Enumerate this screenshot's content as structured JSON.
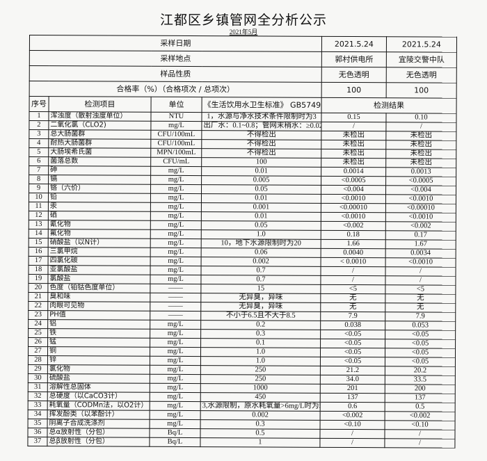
{
  "title": "江都区乡镇管网全分析公示",
  "subtitle": "2021年5月",
  "header_rows": [
    {
      "label": "采样日期",
      "values": [
        "2021.5.24",
        "2021.5.24"
      ]
    },
    {
      "label": "采样地点",
      "values": [
        "郭村供电所",
        "宜陵交警中队"
      ]
    },
    {
      "label": "样品性质",
      "values": [
        "无色透明",
        "无色透明"
      ]
    },
    {
      "label": "合格率（%）（合格项次 / 总项次）",
      "values": [
        "100",
        "100"
      ]
    }
  ],
  "columns": {
    "seq": "序号",
    "item": "检测项目",
    "unit": "单位",
    "standard": "《生活饮用水卫生标准》 GB5749",
    "result": "检测结果"
  },
  "rows": [
    {
      "seq": "1",
      "item": "浑浊度（散射浊度单位）",
      "unit": "NTU",
      "standard": "1，水源与净水技术条件限制时为3",
      "r1": "0.15",
      "r2": "0.10"
    },
    {
      "seq": "2",
      "item": "二氧化氯（CLO2)",
      "unit": "mg/L",
      "standard": "出厂水：0.1~0.8；管网末稍水：≥0.02",
      "r1": "/",
      "r2": "/"
    },
    {
      "seq": "3",
      "item": "总大肠菌群",
      "unit": "CFU/100mL",
      "standard": "不得检出",
      "r1": "未检出",
      "r2": "未检出"
    },
    {
      "seq": "4",
      "item": "耐热大肠菌群",
      "unit": "CFU/100mL",
      "standard": "不得检出",
      "r1": "未检出",
      "r2": "未检出"
    },
    {
      "seq": "5",
      "item": "大肠埃希氏菌",
      "unit": "MPN/100mL",
      "standard": "不得检出",
      "r1": "未检出",
      "r2": "未检出"
    },
    {
      "seq": "6",
      "item": "菌落总数",
      "unit": "CFU/mL",
      "standard": "100",
      "r1": "未检出",
      "r2": "未检出"
    },
    {
      "seq": "7",
      "item": "砷",
      "unit": "mg/L",
      "standard": "0.01",
      "r1": "0.0014",
      "r2": "0.0013"
    },
    {
      "seq": "8",
      "item": "镉",
      "unit": "mg/L",
      "standard": "0.005",
      "r1": "<0.0005",
      "r2": "<0.0005"
    },
    {
      "seq": "9",
      "item": "铬（六价）",
      "unit": "mg/L",
      "standard": "0.05",
      "r1": "<0.004",
      "r2": "<0.004"
    },
    {
      "seq": "10",
      "item": "铅",
      "unit": "mg/L",
      "standard": "0.01",
      "r1": "<0.0010",
      "r2": "<0.0010"
    },
    {
      "seq": "11",
      "item": "汞",
      "unit": "mg/L",
      "standard": "0.001",
      "r1": "<0.00010",
      "r2": "<0.00010"
    },
    {
      "seq": "12",
      "item": "硒",
      "unit": "mg/L",
      "standard": "0.01",
      "r1": "<0.0010",
      "r2": "<0.0010"
    },
    {
      "seq": "13",
      "item": "氰化物",
      "unit": "mg/L",
      "standard": "0.05",
      "r1": "<0.002",
      "r2": "<0.002"
    },
    {
      "seq": "14",
      "item": "氟化物",
      "unit": "mg/L",
      "standard": "1.0",
      "r1": "0.18",
      "r2": "0.17"
    },
    {
      "seq": "15",
      "item": "硝酸盐（以N计）",
      "unit": "mg/L",
      "standard": "10，地下水源限制时为20",
      "r1": "1.66",
      "r2": "1.67"
    },
    {
      "seq": "16",
      "item": "三氯甲烷",
      "unit": "mg/L",
      "standard": "0.06",
      "r1": "0.0040",
      "r2": "0.0034"
    },
    {
      "seq": "17",
      "item": "四氯化碳",
      "unit": "mg/L",
      "standard": "0.002",
      "r1": "< 0.0010",
      "r2": "<0.0010"
    },
    {
      "seq": "18",
      "item": "亚氯酸盐",
      "unit": "mg/L",
      "standard": "0.7",
      "r1": "/",
      "r2": "/"
    },
    {
      "seq": "19",
      "item": "氯酸盐",
      "unit": "mg/L",
      "standard": "0.7",
      "r1": "/",
      "r2": "/"
    },
    {
      "seq": "20",
      "item": "色度（铂钴色度单位）",
      "unit": "——",
      "standard": "15",
      "r1": "<5",
      "r2": "<5"
    },
    {
      "seq": "21",
      "item": "臭和味",
      "unit": "——",
      "standard": "无异臭，异味",
      "r1": "无",
      "r2": "无"
    },
    {
      "seq": "22",
      "item": "肉眼可见物",
      "unit": "——",
      "standard": "无异臭，异味",
      "r1": "无",
      "r2": "无"
    },
    {
      "seq": "23",
      "item": "PH值",
      "unit": "——",
      "standard": "不小于6.5且不大于8.5",
      "r1": "7.9",
      "r2": "7.9"
    },
    {
      "seq": "24",
      "item": "铝",
      "unit": "mg/L",
      "standard": "0.2",
      "r1": "0.038",
      "r2": "0.053"
    },
    {
      "seq": "25",
      "item": "铁",
      "unit": "mg/L",
      "standard": "0.3",
      "r1": "<0.05",
      "r2": "<0.05"
    },
    {
      "seq": "26",
      "item": "锰",
      "unit": "mg/L",
      "standard": "0.1",
      "r1": "<0.05",
      "r2": "<0.05"
    },
    {
      "seq": "27",
      "item": "铜",
      "unit": "mg/L",
      "standard": "1.0",
      "r1": "<0.05",
      "r2": "<0.05"
    },
    {
      "seq": "28",
      "item": "锌",
      "unit": "mg/L",
      "standard": "1.0",
      "r1": "<0.05",
      "r2": "<0.05"
    },
    {
      "seq": "29",
      "item": "氯化物",
      "unit": "mg/L",
      "standard": "250",
      "r1": "21.2",
      "r2": "20.2"
    },
    {
      "seq": "30",
      "item": "硫酸盐",
      "unit": "mg/L",
      "standard": "250",
      "r1": "34.0",
      "r2": "33.5"
    },
    {
      "seq": "31",
      "item": "溶解性总固体",
      "unit": "mg/L",
      "standard": "1000",
      "r1": "201",
      "r2": "200"
    },
    {
      "seq": "32",
      "item": "总硬度（以CaCO3计）",
      "unit": "mg/L",
      "standard": "450",
      "r1": "137",
      "r2": "137"
    },
    {
      "seq": "33",
      "item": "耗氧量（CODMn法，以O2计）",
      "unit": "mg/L",
      "standard": "3,水源限制，原水耗氧量>6mg/L时为5",
      "r1": "0.6",
      "r2": "0.5"
    },
    {
      "seq": "34",
      "item": "挥发酚类（以苯酚计）",
      "unit": "mg/L",
      "standard": "0.002",
      "r1": "<0.002",
      "r2": "<0.002"
    },
    {
      "seq": "35",
      "item": "阴离子合成洗涤剂",
      "unit": "mg/L",
      "standard": "0.3",
      "r1": "<0.10",
      "r2": "<0.10"
    },
    {
      "seq": "36",
      "item": "总α放射性（分包）",
      "unit": "Bq/L",
      "standard": "0.5",
      "r1": "/",
      "r2": "/"
    },
    {
      "seq": "37",
      "item": "总β放射性（分包）",
      "unit": "Bq/L",
      "standard": "1",
      "r1": "/",
      "r2": "/"
    }
  ]
}
